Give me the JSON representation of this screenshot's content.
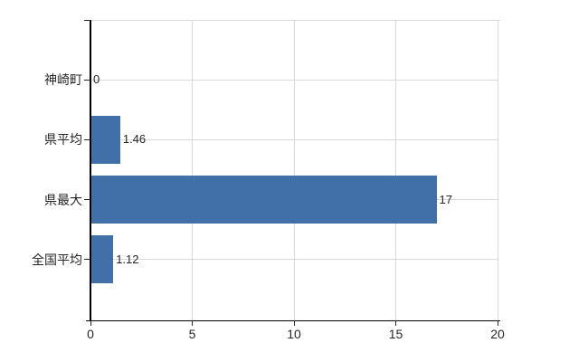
{
  "chart_data": {
    "type": "bar",
    "orientation": "horizontal",
    "title": "",
    "categories": [
      "神崎町",
      "県平均",
      "県最大",
      "全国平均"
    ],
    "values": [
      0,
      1.46,
      17,
      1.12
    ],
    "value_labels": [
      "0",
      "1.46",
      "17",
      "1.12"
    ],
    "xlabel": "",
    "ylabel": "",
    "xlim": [
      0,
      20
    ],
    "x_ticks": [
      0,
      5,
      10,
      15,
      20
    ],
    "x_tick_labels": [
      "0",
      "5",
      "10",
      "15",
      "20"
    ],
    "gridlines": {
      "vertical": true,
      "horizontal_per_category": true,
      "top_border": true
    },
    "legend": false,
    "colors": {
      "bar": "#416FA8",
      "gridline": "#D9D9D9",
      "axis": "#000000",
      "text": "#262626",
      "background": "#FFFFFF"
    }
  }
}
